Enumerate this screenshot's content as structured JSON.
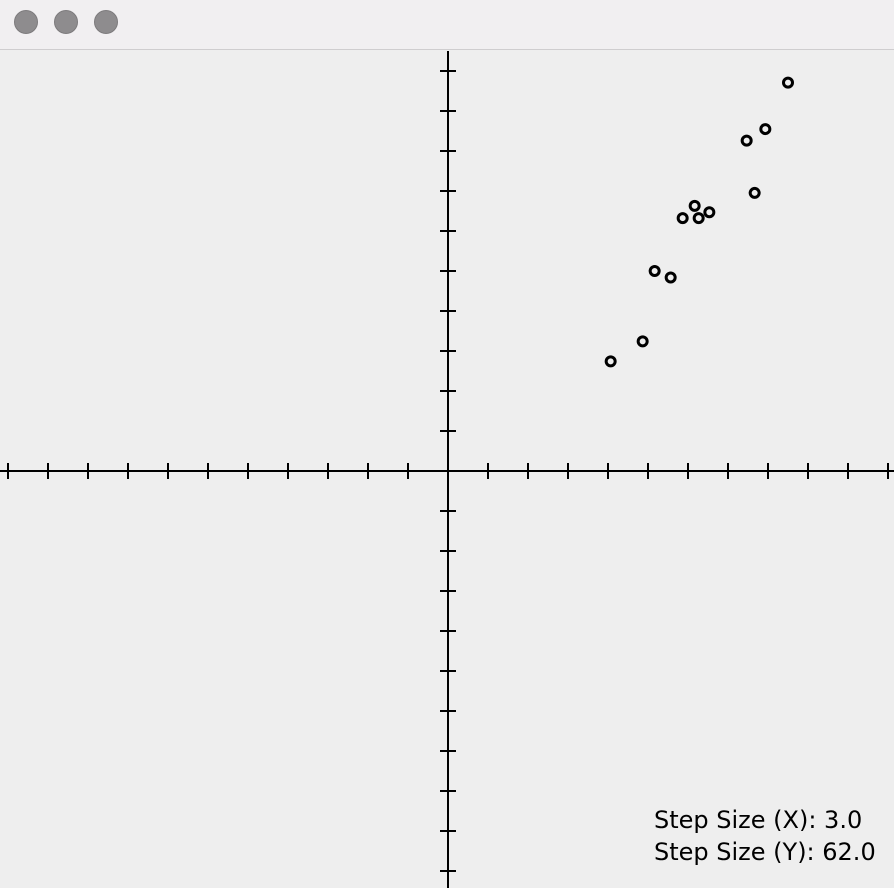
{
  "window": {
    "controls": [
      "close",
      "minimize",
      "zoom"
    ],
    "control_color": "#8e8c8e"
  },
  "status": {
    "step_x_label": "Step Size (X): 3.0",
    "step_y_label": "Step Size (Y): 62.0"
  },
  "chart_data": {
    "type": "scatter",
    "title": "",
    "xlabel": "",
    "ylabel": "",
    "grid": false,
    "axis_color": "#000000",
    "marker": "ring",
    "x_step": 3.0,
    "y_step": 62.0,
    "xlim": [
      -33.5,
      33.5
    ],
    "ylim": [
      -643,
      651
    ],
    "series": [
      {
        "x": [
          12.2,
          14.6,
          15.5,
          16.7,
          17.6,
          18.5,
          18.8,
          19.6,
          22.4,
          23.0,
          23.8,
          25.5
        ],
        "y": [
          170,
          201,
          310,
          300,
          392,
          411,
          392,
          401,
          512,
          431,
          530,
          602
        ]
      }
    ]
  }
}
